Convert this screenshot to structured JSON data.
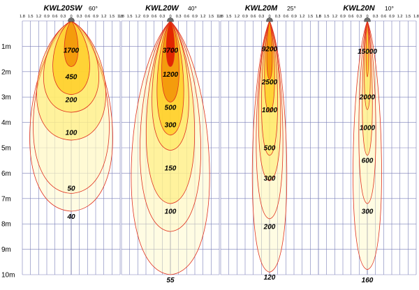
{
  "chart_data": {
    "type": "isolux_contour_chart",
    "x_tick_labels": [
      "1.8",
      "1.5",
      "1.2",
      "0.9",
      "0.6",
      "0.3",
      "0",
      "0.3",
      "0.6",
      "0.9",
      "1.2",
      "1.5",
      "1.8"
    ],
    "x_range_m": [
      -1.8,
      1.8
    ],
    "y_tick_labels": [
      "1m",
      "2m",
      "3m",
      "4m",
      "5m",
      "6m",
      "7m",
      "8m",
      "9m",
      "10m"
    ],
    "y_range_m": [
      0,
      10
    ],
    "grid": true,
    "panels": [
      {
        "model": "KWL20SW",
        "angle": "60°",
        "contours": [
          {
            "lux": "1700",
            "depth_m": 1.8,
            "half_width_m": 0.3
          },
          {
            "lux": "450",
            "depth_m": 2.9,
            "half_width_m": 0.8
          },
          {
            "lux": "200",
            "depth_m": 3.6,
            "half_width_m": 1.2
          },
          {
            "lux": "100",
            "depth_m": 4.7,
            "half_width_m": 1.5
          },
          {
            "lux": "50",
            "depth_m": 6.8,
            "half_width_m": 1.65
          },
          {
            "lux": "40",
            "depth_m": 7.5,
            "half_width_m": 1.8
          }
        ],
        "labels": [
          {
            "text": "1700",
            "at_m": 1.15
          },
          {
            "text": "450",
            "at_m": 2.2
          },
          {
            "text": "200",
            "at_m": 3.1
          },
          {
            "text": "100",
            "at_m": 4.4
          },
          {
            "text": "50",
            "at_m": 6.6
          },
          {
            "text": "40",
            "at_m": 7.7
          }
        ]
      },
      {
        "model": "KWL20W",
        "angle": "40°",
        "contours": [
          {
            "lux": "3700",
            "depth_m": 1.8,
            "half_width_m": 0.18
          },
          {
            "lux": "1200",
            "depth_m": 3.2,
            "half_width_m": 0.38
          },
          {
            "lux": "500",
            "depth_m": 4.5,
            "half_width_m": 0.58
          },
          {
            "lux": "300",
            "depth_m": 5.1,
            "half_width_m": 0.8
          },
          {
            "lux": "150",
            "depth_m": 7.2,
            "half_width_m": 1.05
          },
          {
            "lux": "100",
            "depth_m": 8.3,
            "half_width_m": 1.32
          },
          {
            "lux": "55",
            "depth_m": 10.0,
            "half_width_m": 1.7
          }
        ],
        "labels": [
          {
            "text": "3700",
            "at_m": 1.15
          },
          {
            "text": "1200",
            "at_m": 2.1
          },
          {
            "text": "500",
            "at_m": 3.4
          },
          {
            "text": "300",
            "at_m": 4.1
          },
          {
            "text": "150",
            "at_m": 5.8
          },
          {
            "text": "100",
            "at_m": 7.5
          },
          {
            "text": "55",
            "at_m": 10.2
          }
        ]
      },
      {
        "model": "KWL20M",
        "angle": "25°",
        "contours": [
          {
            "lux": "9200",
            "depth_m": 2.3,
            "half_width_m": 0.12
          },
          {
            "lux": "2500",
            "depth_m": 3.6,
            "half_width_m": 0.22
          },
          {
            "lux": "1000",
            "depth_m": 5.3,
            "half_width_m": 0.35
          },
          {
            "lux": "500",
            "depth_m": 6.3,
            "half_width_m": 0.48
          },
          {
            "lux": "300",
            "depth_m": 7.8,
            "half_width_m": 0.58
          },
          {
            "lux": "200",
            "depth_m": 9.9,
            "half_width_m": 0.75
          }
        ],
        "labels": [
          {
            "text": "9200",
            "at_m": 1.1
          },
          {
            "text": "2500",
            "at_m": 2.4
          },
          {
            "text": "1000",
            "at_m": 3.5
          },
          {
            "text": "500",
            "at_m": 5.0
          },
          {
            "text": "300",
            "at_m": 6.2
          },
          {
            "text": "200",
            "at_m": 8.1
          },
          {
            "text": "120",
            "at_m": 10.1
          }
        ]
      },
      {
        "model": "KWL20N",
        "angle": "10°",
        "contours": [
          {
            "lux": "15000",
            "depth_m": 2.2,
            "half_width_m": 0.05
          },
          {
            "lux": "2000",
            "depth_m": 3.5,
            "half_width_m": 0.13
          },
          {
            "lux": "1000",
            "depth_m": 5.3,
            "half_width_m": 0.22
          },
          {
            "lux": "600",
            "depth_m": 7.2,
            "half_width_m": 0.37
          },
          {
            "lux": "300",
            "depth_m": 9.8,
            "half_width_m": 0.62
          }
        ],
        "labels": [
          {
            "text": "15000",
            "at_m": 1.2
          },
          {
            "text": "2000",
            "at_m": 3.0
          },
          {
            "text": "1000",
            "at_m": 4.2
          },
          {
            "text": "600",
            "at_m": 5.5
          },
          {
            "text": "300",
            "at_m": 7.5
          },
          {
            "text": "160",
            "at_m": 10.2
          }
        ]
      }
    ]
  },
  "colors": {
    "outer": "#fff8c0",
    "mid": "#ffe85a",
    "warm": "#ffc000",
    "hot": "#f08a00",
    "core": "#e02000",
    "contour_line": "#e0301e",
    "grid_line": "#7a7fb8"
  }
}
